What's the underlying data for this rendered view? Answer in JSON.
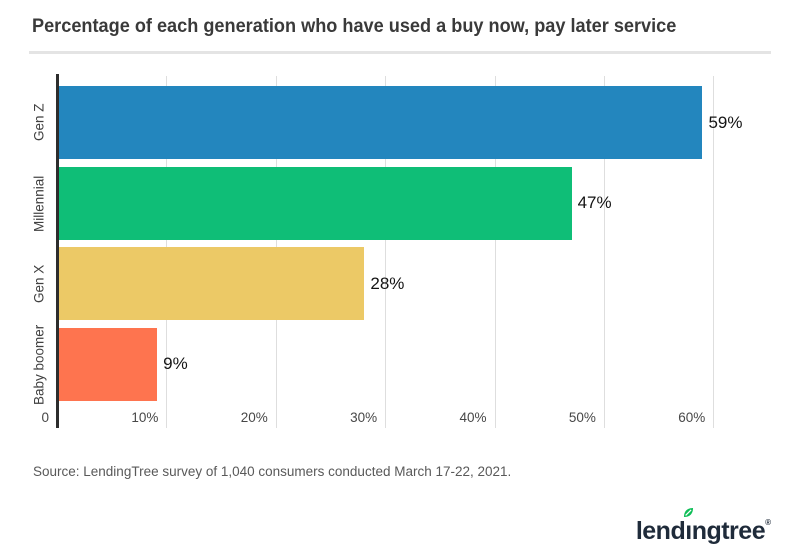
{
  "header": {
    "title": "Percentage of each generation who have used a buy now, pay later service"
  },
  "chart_data": {
    "type": "bar",
    "orientation": "horizontal",
    "title": "Percentage of each generation who have used a buy now, pay later service",
    "categories": [
      "Gen Z",
      "Millennial",
      "Gen X",
      "Baby boomer"
    ],
    "values": [
      59,
      47,
      28,
      9
    ],
    "value_labels": [
      "59%",
      "47%",
      "28%",
      "9%"
    ],
    "bar_colors": [
      "#2386BE",
      "#0FBE77",
      "#ECC966",
      "#FE744F"
    ],
    "xlabel": "",
    "ylabel": "",
    "xlim": [
      0,
      62.9
    ],
    "xticks": [
      {
        "value": 0,
        "label": "0"
      },
      {
        "value": 10,
        "label": "10%"
      },
      {
        "value": 20,
        "label": "20%"
      },
      {
        "value": 30,
        "label": "30%"
      },
      {
        "value": 40,
        "label": "40%"
      },
      {
        "value": 50,
        "label": "50%"
      },
      {
        "value": 60,
        "label": "60%"
      }
    ],
    "grid": "vertical gridlines",
    "legend": "none",
    "colors": {
      "axis_line": "#2D2D2D",
      "gridline": "#DEDEDE",
      "tick_label": "#474747",
      "category_label": "#404040",
      "value_label": "#141414"
    }
  },
  "footer": {
    "source": "Source: LendingTree survey of 1,040 consumers conducted March 17-22, 2021.",
    "logo": {
      "brand": "lendingtree",
      "text_before_leaf": "lend",
      "i_letter": "ı",
      "text_after_leaf": "ngtree",
      "registered_mark": "®",
      "leaf_color": "#0EBE57",
      "text_color": "#1F2B3A"
    }
  }
}
